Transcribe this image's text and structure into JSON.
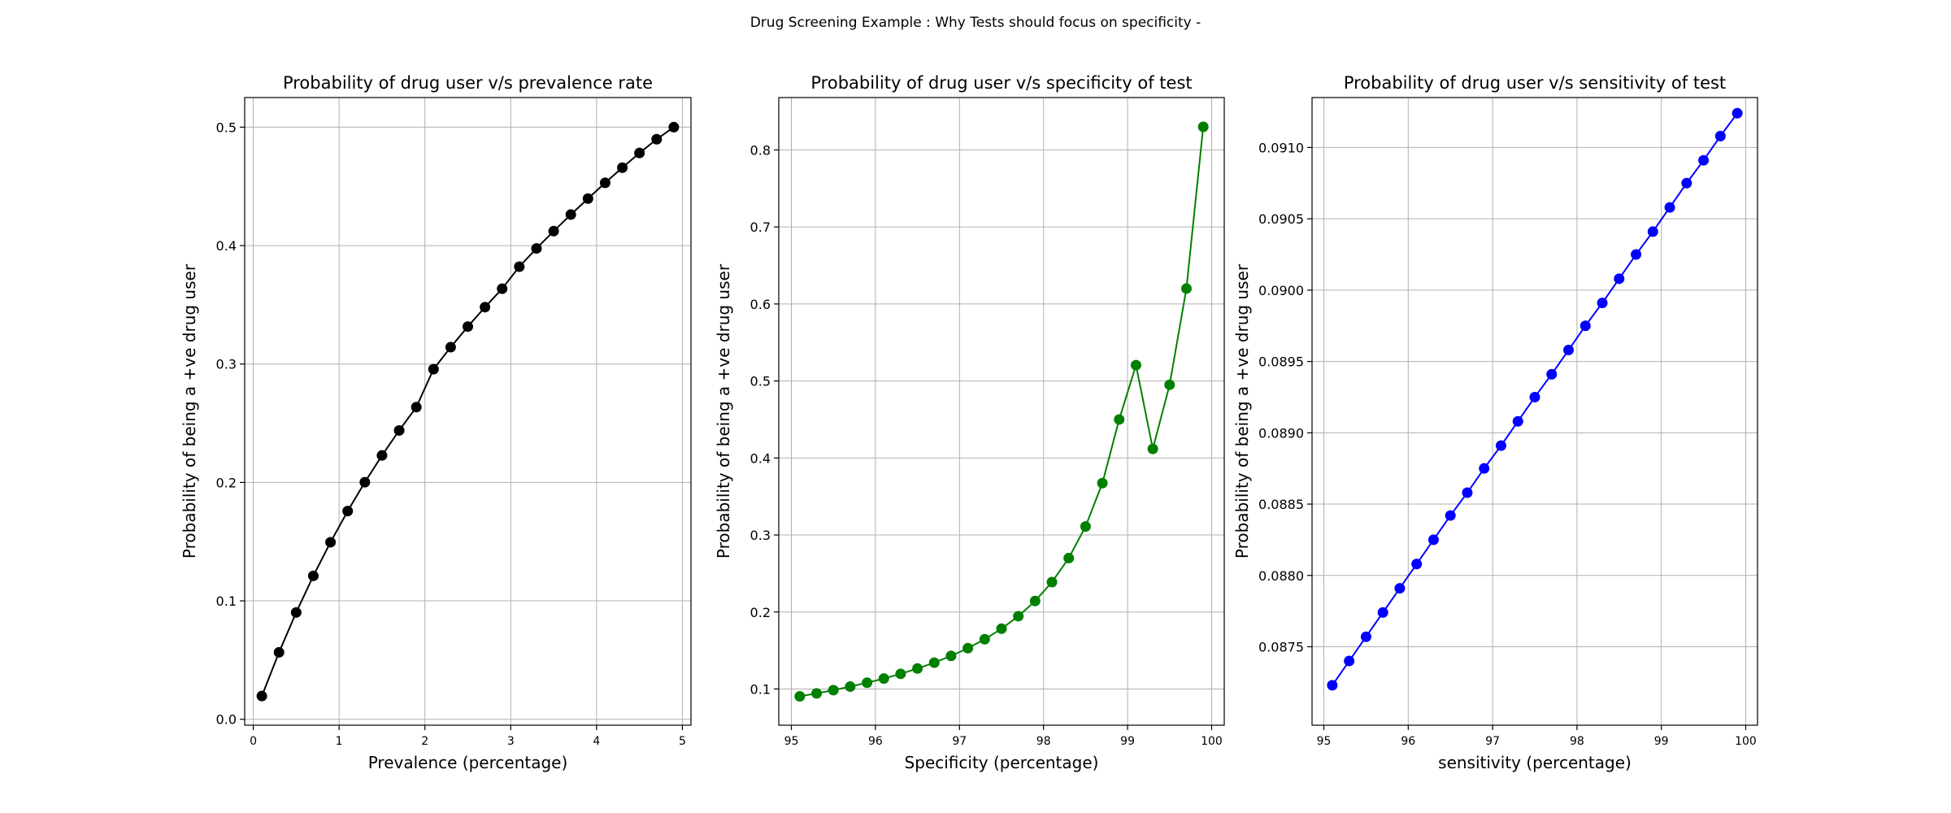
{
  "figure": {
    "suptitle": "Drug Screening Example : Why Tests should focus on specificity -"
  },
  "chart_data": [
    {
      "type": "line",
      "title": "Probability of drug user v/s prevalence rate",
      "xlabel": "Prevalence (percentage)",
      "ylabel": "Probability of being a +ve drug user",
      "xlim": [
        -0.1,
        5.1
      ],
      "ylim": [
        -0.005,
        0.525
      ],
      "xticks": [
        0,
        1,
        2,
        3,
        4,
        5
      ],
      "xtick_labels": [
        "0",
        "1",
        "2",
        "3",
        "4",
        "5"
      ],
      "yticks": [
        0.0,
        0.1,
        0.2,
        0.3,
        0.4,
        0.5
      ],
      "ytick_labels": [
        "0.0",
        "0.1",
        "0.2",
        "0.3",
        "0.4",
        "0.5"
      ],
      "grid": true,
      "color": "#000000",
      "series": [
        {
          "x": [
            0.1,
            0.3,
            0.5,
            0.7,
            0.9,
            1.1,
            1.3,
            1.5,
            1.7,
            1.9,
            2.1,
            2.3,
            2.5,
            2.7,
            2.9,
            3.1,
            3.3,
            3.5,
            3.7,
            3.9,
            4.1,
            4.3,
            4.5,
            4.7,
            4.9
          ],
          "y": [
            0.0196,
            0.0565,
            0.0902,
            0.1211,
            0.1495,
            0.1758,
            0.2002,
            0.2228,
            0.2439,
            0.2636,
            0.2956,
            0.3142,
            0.3316,
            0.348,
            0.3636,
            0.3822,
            0.3976,
            0.4122,
            0.4262,
            0.4397,
            0.453,
            0.4658,
            0.4782,
            0.4898,
            0.5
          ]
        }
      ]
    },
    {
      "type": "line",
      "title": "Probability of drug user v/s specificity of test",
      "xlabel": "Specificity (percentage)",
      "ylabel": "Probability of being a +ve drug user",
      "xlim": [
        94.85,
        100.15
      ],
      "ylim": [
        0.053,
        0.868
      ],
      "xticks": [
        95,
        96,
        97,
        98,
        99,
        100
      ],
      "xtick_labels": [
        "95",
        "96",
        "97",
        "98",
        "99",
        "100"
      ],
      "yticks": [
        0.1,
        0.2,
        0.3,
        0.4,
        0.5,
        0.6,
        0.7,
        0.8
      ],
      "ytick_labels": [
        "0.1",
        "0.2",
        "0.3",
        "0.4",
        "0.5",
        "0.6",
        "0.7",
        "0.8"
      ],
      "grid": true,
      "color": "#008000",
      "series": [
        {
          "x": [
            95.1,
            95.3,
            95.5,
            95.7,
            95.9,
            96.1,
            96.3,
            96.5,
            96.7,
            96.9,
            97.1,
            97.3,
            97.5,
            97.7,
            97.9,
            98.1,
            98.3,
            98.5,
            98.7,
            98.9,
            99.1,
            99.3,
            99.5,
            99.7,
            99.9
          ],
          "y": [
            0.0905,
            0.0943,
            0.0985,
            0.1031,
            0.1081,
            0.1136,
            0.1197,
            0.1266,
            0.1342,
            0.143,
            0.153,
            0.1646,
            0.1783,
            0.1945,
            0.2143,
            0.2388,
            0.27,
            0.311,
            0.3673,
            0.45,
            0.5206,
            0.4118,
            0.495,
            0.62,
            0.83
          ]
        }
      ]
    },
    {
      "type": "line",
      "title": "Probability of drug user v/s sensitivity of test",
      "xlabel": "sensitivity (percentage)",
      "ylabel": "Probability of being a +ve drug user",
      "xlim": [
        94.86,
        100.14
      ],
      "ylim": [
        0.08695,
        0.09135
      ],
      "xticks": [
        95,
        96,
        97,
        98,
        99,
        100
      ],
      "xtick_labels": [
        "95",
        "96",
        "97",
        "98",
        "99",
        "100"
      ],
      "yticks": [
        0.0875,
        0.088,
        0.0885,
        0.089,
        0.0895,
        0.09,
        0.0905,
        0.091
      ],
      "ytick_labels": [
        "0.0875",
        "0.0880",
        "0.0885",
        "0.0890",
        "0.0895",
        "0.0900",
        "0.0905",
        "0.0910"
      ],
      "grid": true,
      "color": "#0000ff",
      "series": [
        {
          "x": [
            95.1,
            95.3,
            95.5,
            95.7,
            95.9,
            96.1,
            96.3,
            96.5,
            96.7,
            96.9,
            97.1,
            97.3,
            97.5,
            97.7,
            97.9,
            98.1,
            98.3,
            98.5,
            98.7,
            98.9,
            99.1,
            99.3,
            99.5,
            99.7,
            99.9
          ],
          "y": [
            0.08723,
            0.0874,
            0.08757,
            0.08774,
            0.08791,
            0.08808,
            0.08825,
            0.08842,
            0.08858,
            0.08875,
            0.08891,
            0.08908,
            0.08925,
            0.08941,
            0.08958,
            0.08975,
            0.08991,
            0.09008,
            0.09025,
            0.09041,
            0.09058,
            0.09075,
            0.09091,
            0.09108,
            0.09124
          ]
        }
      ]
    }
  ]
}
